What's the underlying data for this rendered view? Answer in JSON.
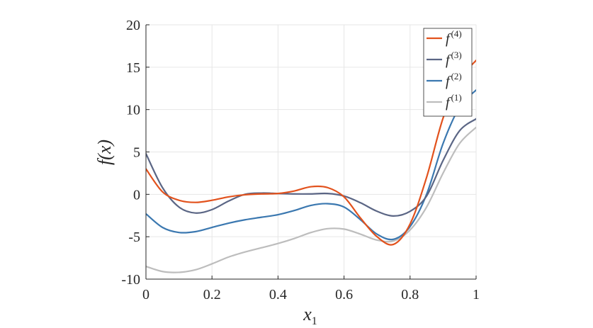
{
  "chart_data": {
    "type": "line",
    "title": "",
    "xlabel": {
      "base": "x",
      "sub": "1"
    },
    "ylabel": {
      "text": "f(x)"
    },
    "xlim": [
      0,
      1
    ],
    "ylim": [
      -10,
      20
    ],
    "xticks": [
      0,
      0.2,
      0.4,
      0.6,
      0.8,
      1
    ],
    "xtick_labels": [
      "0",
      "0.2",
      "0.4",
      "0.6",
      "0.8",
      "1"
    ],
    "yticks": [
      -10,
      -5,
      0,
      5,
      10,
      15,
      20
    ],
    "ytick_labels": [
      "-10",
      "-5",
      "0",
      "5",
      "10",
      "15",
      "20"
    ],
    "grid": true,
    "legend_position": "top-right",
    "series": [
      {
        "name": "f",
        "sup": "(4)",
        "color": "#e2521d",
        "x": [
          0,
          0.05,
          0.1,
          0.15,
          0.2,
          0.25,
          0.3,
          0.35,
          0.4,
          0.45,
          0.5,
          0.55,
          0.6,
          0.65,
          0.7,
          0.75,
          0.8,
          0.85,
          0.9,
          0.95,
          1
        ],
        "y": [
          3.0,
          0.3,
          -0.7,
          -0.95,
          -0.7,
          -0.3,
          -0.05,
          0.05,
          0.1,
          0.4,
          0.9,
          0.8,
          -0.3,
          -2.8,
          -5.0,
          -5.9,
          -3.5,
          2.0,
          9.0,
          13.5,
          15.8
        ]
      },
      {
        "name": "f",
        "sup": "(3)",
        "color": "#5b6685",
        "x": [
          0,
          0.05,
          0.1,
          0.15,
          0.2,
          0.25,
          0.3,
          0.35,
          0.4,
          0.45,
          0.5,
          0.55,
          0.6,
          0.65,
          0.7,
          0.75,
          0.8,
          0.85,
          0.9,
          0.95,
          1
        ],
        "y": [
          4.8,
          0.8,
          -1.5,
          -2.2,
          -1.8,
          -0.8,
          0.0,
          0.15,
          0.1,
          0.05,
          0.05,
          0.1,
          -0.2,
          -1.0,
          -2.0,
          -2.55,
          -2.0,
          -0.2,
          4.0,
          7.5,
          8.9
        ]
      },
      {
        "name": "f",
        "sup": "(2)",
        "color": "#3b78b0",
        "x": [
          0,
          0.05,
          0.1,
          0.15,
          0.2,
          0.25,
          0.3,
          0.35,
          0.4,
          0.45,
          0.5,
          0.55,
          0.6,
          0.65,
          0.7,
          0.75,
          0.8,
          0.85,
          0.9,
          0.95,
          1
        ],
        "y": [
          -2.3,
          -3.9,
          -4.5,
          -4.4,
          -3.9,
          -3.4,
          -3.0,
          -2.7,
          -2.4,
          -1.9,
          -1.3,
          -1.1,
          -1.5,
          -3.0,
          -4.7,
          -5.3,
          -3.8,
          0.0,
          6.0,
          10.3,
          12.3
        ]
      },
      {
        "name": "f",
        "sup": "(1)",
        "color": "#bdbdbd",
        "x": [
          0,
          0.05,
          0.1,
          0.15,
          0.2,
          0.25,
          0.3,
          0.35,
          0.4,
          0.45,
          0.5,
          0.55,
          0.6,
          0.65,
          0.7,
          0.75,
          0.8,
          0.85,
          0.9,
          0.95,
          1
        ],
        "y": [
          -8.5,
          -9.1,
          -9.2,
          -8.9,
          -8.2,
          -7.4,
          -6.8,
          -6.3,
          -5.8,
          -5.2,
          -4.5,
          -4.05,
          -4.1,
          -4.7,
          -5.4,
          -5.5,
          -4.2,
          -1.5,
          2.5,
          6.0,
          7.9
        ]
      }
    ]
  }
}
